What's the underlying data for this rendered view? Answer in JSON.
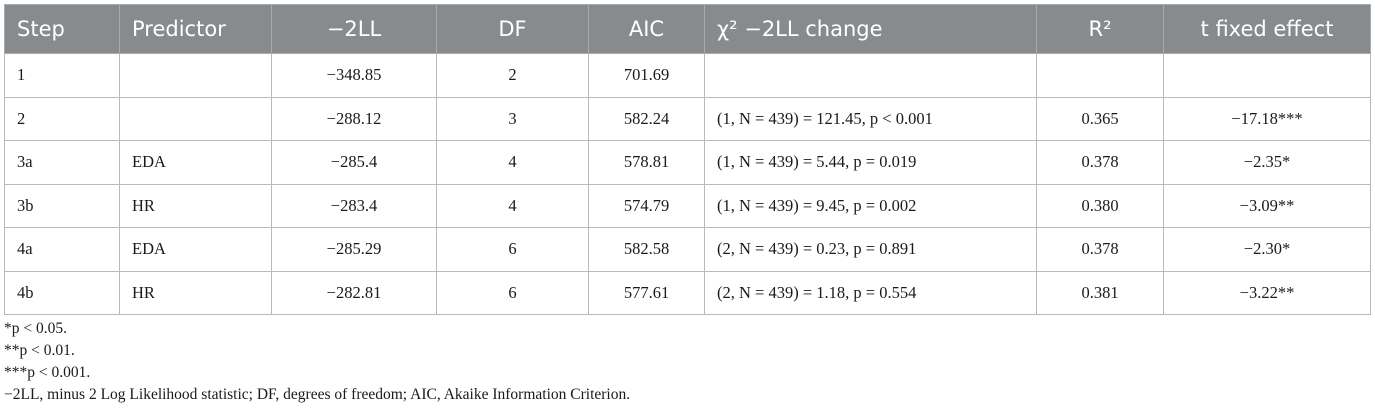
{
  "table": {
    "headers": [
      "Step",
      "Predictor",
      "−2LL",
      "DF",
      "AIC",
      "χ² −2LL change",
      "R²",
      "t fixed effect"
    ],
    "rows": [
      [
        "1",
        "",
        "−348.85",
        "2",
        "701.69",
        "",
        "",
        ""
      ],
      [
        "2",
        "",
        "−288.12",
        "3",
        "582.24",
        "(1,  N = 439) = 121.45, p < 0.001",
        "0.365",
        "−17.18***"
      ],
      [
        "3a",
        "EDA",
        "−285.4",
        "4",
        "578.81",
        "(1,  N = 439) = 5.44, p = 0.019",
        "0.378",
        "−2.35*"
      ],
      [
        "3b",
        "HR",
        "−283.4",
        "4",
        "574.79",
        "(1,  N = 439) = 9.45, p = 0.002",
        "0.380",
        "−3.09**"
      ],
      [
        "4a",
        "EDA",
        "−285.29",
        "6",
        "582.58",
        "(2,  N = 439) = 0.23, p = 0.891",
        "0.378",
        "−2.30*"
      ],
      [
        "4b",
        "HR",
        "−282.81",
        "6",
        "577.61",
        "(2,  N = 439) = 1.18, p = 0.554",
        "0.381",
        "−3.22**"
      ]
    ]
  },
  "footnotes": [
    "*p <  0.05.",
    "**p <  0.01.",
    "***p <  0.001.",
    "−2LL, minus 2 Log Likelihood statistic; DF, degrees of freedom; AIC, Akaike Information Criterion."
  ],
  "colors": {
    "header_bg": "#888b8e",
    "header_text": "#ffffff",
    "border": "#b9b9b9"
  }
}
